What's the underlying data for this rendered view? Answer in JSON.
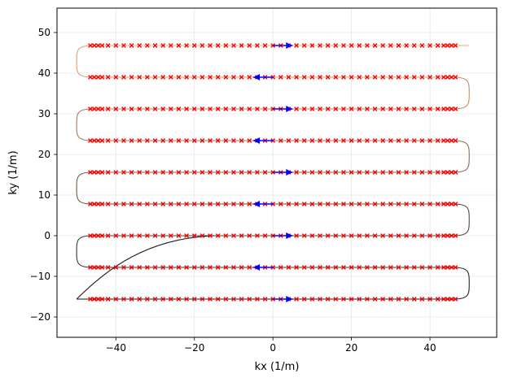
{
  "chart_data": {
    "type": "line",
    "title": "",
    "xlabel": "kx (1/m)",
    "ylabel": "ky (1/m)",
    "xlim": [
      -55,
      57
    ],
    "ylim": [
      -25,
      56
    ],
    "xticks": [
      -40,
      -20,
      0,
      20,
      40
    ],
    "yticks": [
      -20,
      -10,
      0,
      10,
      20,
      30,
      40,
      50
    ],
    "xtick_labels": [
      "−40",
      "−20",
      "0",
      "20",
      "40"
    ],
    "ytick_labels": [
      "−20",
      "−10",
      "0",
      "10",
      "20",
      "30",
      "40",
      "50"
    ],
    "grid": true,
    "legend": "none",
    "rows_ky": [
      -15.6,
      -7.8,
      0,
      7.8,
      15.6,
      23.4,
      31.2,
      39.0,
      46.8
    ],
    "row_directions": [
      1,
      -1,
      1,
      -1,
      1,
      -1,
      1,
      -1,
      1
    ],
    "row_kx_range": [
      -46.5,
      46.5
    ],
    "turn_extent_kx": [
      -50,
      50
    ],
    "trajectory_start": [
      -50,
      -15.6
    ],
    "trajectory_end": [
      50,
      46.8
    ],
    "trajectory_color_start": "#1a1a1a",
    "trajectory_color_end": "#f7b07e",
    "prephaser_path": {
      "start": [
        -50,
        -15.6
      ],
      "end": [
        -15,
        0
      ],
      "color": "#1a1a1a"
    },
    "samples": {
      "marker": "x",
      "color": "#ff0000",
      "kx": [
        -46.5,
        -45.5,
        -44.5,
        -43.5,
        -42,
        -40,
        -38,
        -36,
        -34,
        -32,
        -30,
        -28,
        -26,
        -24,
        -22,
        -20,
        -18,
        -16,
        -14,
        -12,
        -10,
        -8,
        -6,
        -4,
        -2,
        0,
        2,
        4,
        6,
        8,
        10,
        12,
        14,
        16,
        18,
        20,
        22,
        24,
        26,
        28,
        30,
        32,
        34,
        36,
        38,
        40,
        42,
        43.5,
        44.5,
        45.5,
        46.5
      ]
    },
    "arrows": {
      "color": "#0000ff",
      "kx_center": 2.5,
      "length": 5
    }
  }
}
